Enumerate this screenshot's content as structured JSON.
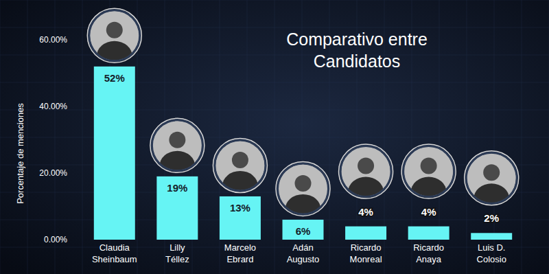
{
  "chart_data": {
    "type": "bar",
    "title": "Comparativo entre Candidatos",
    "y_label": "Porcentaje de menciones",
    "categories": [
      "Claudia Sheinbaum",
      "Lilly Téllez",
      "Marcelo Ebrard",
      "Adán Augusto",
      "Ricardo Monreal",
      "Ricardo Anaya",
      "Luis D. Colosio"
    ],
    "values": [
      52,
      19,
      13,
      6,
      4,
      4,
      2
    ],
    "value_labels": [
      "52%",
      "19%",
      "13%",
      "6%",
      "4%",
      "4%",
      "2%"
    ],
    "color": "#66f4f4",
    "ylim": [
      0,
      60
    ],
    "yticks": [
      {
        "value": 0,
        "label": "0.00%"
      },
      {
        "value": 20,
        "label": "20.00%"
      },
      {
        "value": 40,
        "label": "40.00%"
      },
      {
        "value": 60,
        "label": "60.00%"
      }
    ],
    "grid": false,
    "data_labels": true
  }
}
